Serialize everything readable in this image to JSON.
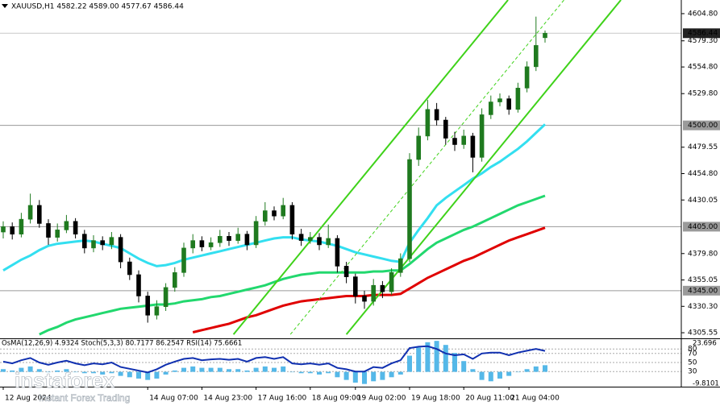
{
  "chart_data": {
    "type": "candlestick",
    "title": "XAUUSD,H1 4582.22 4589.00 4577.67 4586.44",
    "categories": [
      "12 Aug 2024",
      null,
      null,
      null,
      null,
      null,
      null,
      null,
      null,
      null,
      null,
      null,
      null,
      null,
      null,
      null,
      "14 Aug 07:00",
      null,
      null,
      null,
      null,
      null,
      "14 Aug 23:00",
      null,
      null,
      null,
      null,
      null,
      "17 Aug 16:00",
      null,
      null,
      null,
      null,
      null,
      "18 Aug 09:00",
      null,
      null,
      null,
      null,
      "19 Aug 02:00",
      null,
      null,
      null,
      null,
      null,
      "19 Aug 18:00",
      null,
      null,
      null,
      null,
      null,
      "20 Aug 11:00",
      null,
      null,
      null,
      null,
      "21 Aug 04:00",
      null,
      null,
      null,
      null
    ],
    "open": [
      4400,
      4405,
      4398,
      4412,
      4425,
      4408,
      4395,
      4402,
      4410,
      4398,
      4385,
      4392,
      4388,
      4395,
      4372,
      4360,
      4340,
      4322,
      4330,
      4348,
      4362,
      4385,
      4392,
      4386,
      4390,
      4396,
      4392,
      4398,
      4388,
      4410,
      4420,
      4415,
      4425,
      4398,
      4392,
      4395,
      4388,
      4394,
      4368,
      4358,
      4340,
      4335,
      4350,
      4344,
      4362,
      4375,
      4468,
      4490,
      4515,
      4505,
      4488,
      4482,
      4490,
      4470,
      4510,
      4522,
      4525,
      4515,
      4535,
      4555,
      4582.22
    ],
    "high": [
      4410,
      4409,
      4418,
      4436,
      4430,
      4412,
      4408,
      4416,
      4413,
      4402,
      4397,
      4396,
      4400,
      4398,
      4376,
      4364,
      4344,
      4336,
      4352,
      4367,
      4390,
      4398,
      4396,
      4395,
      4402,
      4400,
      4404,
      4401,
      4415,
      4428,
      4424,
      4432,
      4428,
      4403,
      4400,
      4399,
      4407,
      4397,
      4372,
      4361,
      4345,
      4356,
      4354,
      4366,
      4380,
      4474,
      4498,
      4524,
      4521,
      4508,
      4494,
      4496,
      4493,
      4516,
      4528,
      4530,
      4528,
      4540,
      4560,
      4602,
      4589.0
    ],
    "low": [
      4394,
      4393,
      4395,
      4408,
      4404,
      4388,
      4391,
      4399,
      4394,
      4380,
      4381,
      4383,
      4384,
      4366,
      4355,
      4334,
      4315,
      4318,
      4326,
      4344,
      4358,
      4380,
      4382,
      4383,
      4386,
      4387,
      4389,
      4383,
      4385,
      4406,
      4411,
      4412,
      4393,
      4387,
      4389,
      4383,
      4385,
      4362,
      4352,
      4333,
      4328,
      4331,
      4338,
      4341,
      4358,
      4372,
      4462,
      4486,
      4500,
      4482,
      4476,
      4478,
      4456,
      4466,
      4506,
      4518,
      4510,
      4512,
      4531,
      4551,
      4577.67
    ],
    "close": [
      4405,
      4398,
      4412,
      4425,
      4408,
      4395,
      4402,
      4410,
      4398,
      4385,
      4392,
      4388,
      4395,
      4372,
      4360,
      4340,
      4322,
      4330,
      4348,
      4362,
      4385,
      4392,
      4386,
      4390,
      4396,
      4392,
      4398,
      4388,
      4410,
      4420,
      4415,
      4425,
      4398,
      4392,
      4395,
      4388,
      4394,
      4368,
      4358,
      4340,
      4335,
      4350,
      4344,
      4362,
      4375,
      4468,
      4490,
      4515,
      4505,
      4488,
      4482,
      4490,
      4470,
      4510,
      4522,
      4525,
      4515,
      4535,
      4555,
      4575,
      4586.44
    ],
    "up_color": "#1f7a1f",
    "down_color": "#000000",
    "ylim": [
      4300.3,
      4617.6
    ],
    "yticks": [
      {
        "value": 4604.8,
        "label": "4604.80"
      },
      {
        "value": 4579.3,
        "label": "4579.30"
      },
      {
        "value": 4554.8,
        "label": "4554.80"
      },
      {
        "value": 4529.8,
        "label": "4529.80"
      },
      {
        "value": 4479.55,
        "label": "4479.55"
      },
      {
        "value": 4454.8,
        "label": "4454.80"
      },
      {
        "value": 4430.05,
        "label": "4430.05"
      },
      {
        "value": 4379.8,
        "label": "4379.80"
      },
      {
        "value": 4355.05,
        "label": "4355.05"
      },
      {
        "value": 4330.3,
        "label": "4330.30"
      },
      {
        "value": 4305.55,
        "label": "4305.55"
      }
    ],
    "grid": false,
    "moving_averages": [
      {
        "color": "#33dff0",
        "width": 3,
        "values": [
          4364,
          4369,
          4374,
          4378,
          4383,
          4387,
          4389,
          4390,
          4391,
          4392,
          4391,
          4389,
          4387,
          4385,
          4380,
          4375,
          4371,
          4368,
          4369,
          4371,
          4374,
          4376,
          4378,
          4380,
          4382,
          4384,
          4386,
          4388,
          4390,
          4392,
          4394,
          4395,
          4395,
          4393,
          4392,
          4391,
          4389,
          4387,
          4384,
          4381,
          4379,
          4377,
          4375,
          4373,
          4372,
          4390,
          4402,
          4413,
          4425,
          4432,
          4438,
          4444,
          4450,
          4455,
          4461,
          4466,
          4472,
          4478,
          4485,
          4493,
          4501
        ]
      },
      {
        "color": "#22d86e",
        "width": 3,
        "values": [
          null,
          null,
          null,
          null,
          4304,
          4308,
          4311,
          4315,
          4318,
          4320,
          4322,
          4324,
          4326,
          4328,
          4329,
          4330,
          4331,
          4332,
          4332,
          4333,
          4335,
          4336,
          4337,
          4339,
          4340,
          4342,
          4344,
          4346,
          4348,
          4350,
          4353,
          4356,
          4358,
          4360,
          4361,
          4362,
          4362,
          4362,
          4362,
          4362,
          4362,
          4363,
          4363,
          4364,
          4364,
          4370,
          4377,
          4384,
          4390,
          4394,
          4398,
          4402,
          4405,
          4409,
          4413,
          4417,
          4421,
          4425,
          4428,
          4431,
          4434
        ]
      },
      {
        "color": "#e00000",
        "width": 3,
        "values": [
          null,
          null,
          null,
          null,
          null,
          null,
          null,
          null,
          null,
          null,
          null,
          null,
          null,
          null,
          null,
          null,
          null,
          null,
          null,
          null,
          null,
          4306,
          4308,
          4310,
          4312,
          4314,
          4317,
          4320,
          4322,
          4325,
          4328,
          4331,
          4333,
          4335,
          4336,
          4337,
          4338,
          4339,
          4340,
          4340,
          4340,
          4341,
          4341,
          4341,
          4342,
          4347,
          4352,
          4357,
          4361,
          4365,
          4369,
          4373,
          4376,
          4380,
          4384,
          4388,
          4392,
          4395,
          4398,
          4401,
          4404
        ]
      }
    ],
    "channels": [
      {
        "color": "#3fd21a",
        "dashed": false,
        "x": [
          25.5,
          55.9
        ],
        "y": [
          4304,
          4617.6
        ]
      },
      {
        "color": "#3fd21a",
        "dashed": true,
        "x": [
          31.8,
          62.1
        ],
        "y": [
          4304,
          4617.6
        ]
      },
      {
        "color": "#3fd21a",
        "dashed": false,
        "x": [
          38.0,
          68.4
        ],
        "y": [
          4304,
          4617.6
        ]
      }
    ],
    "levels": [
      {
        "value": 4500,
        "label": "4500.00"
      },
      {
        "value": 4405,
        "label": "4405.00"
      },
      {
        "value": 4345,
        "label": "4345.00"
      }
    ],
    "level_color": "#9a9a9a",
    "current_price": 4586.44,
    "indicator": {
      "label": "OsMA(12,26,9) 4.9324 Stoch(5,3,3) 80.7177 86.2547 RSI(14) 75.6661",
      "ylim": [
        0,
        100
      ],
      "yticks": [
        80,
        70,
        50,
        30
      ],
      "y2lim": [
        -9.8101,
        23.696
      ],
      "y2ticks": [
        23.696,
        -9.8101
      ],
      "series": [
        {
          "color": "#55b8e8",
          "axis": "y2",
          "values": [
            2,
            1,
            3,
            4,
            2,
            0,
            1,
            2,
            0,
            -1,
            -1,
            -2,
            -1,
            -3,
            -4,
            -5,
            -6,
            -5,
            -2,
            1,
            3,
            4,
            3,
            3,
            3,
            2,
            2,
            1,
            3,
            4,
            3,
            4,
            0,
            -1,
            -1,
            -2,
            -1,
            -4,
            -6,
            -8,
            -9,
            -7,
            -6,
            -4,
            -2,
            12,
            18,
            22,
            23,
            20,
            14,
            8,
            2,
            -6,
            -7,
            -5,
            -3,
            0,
            2,
            4,
            4.9324
          ]
        },
        {
          "color": "#1030b0",
          "values": [
            52,
            48,
            55,
            60,
            50,
            45,
            50,
            54,
            48,
            44,
            48,
            46,
            50,
            40,
            36,
            32,
            28,
            35,
            45,
            52,
            58,
            60,
            55,
            57,
            58,
            56,
            58,
            52,
            60,
            62,
            58,
            62,
            48,
            46,
            48,
            45,
            48,
            38,
            35,
            30,
            30,
            40,
            38,
            48,
            55,
            82,
            85,
            86,
            80,
            70,
            66,
            68,
            58,
            70,
            72,
            72,
            66,
            72,
            76,
            80,
            75.6661
          ]
        }
      ]
    },
    "watermark": {
      "brand": "instaforex",
      "tagline": "Instant Forex Trading"
    }
  }
}
